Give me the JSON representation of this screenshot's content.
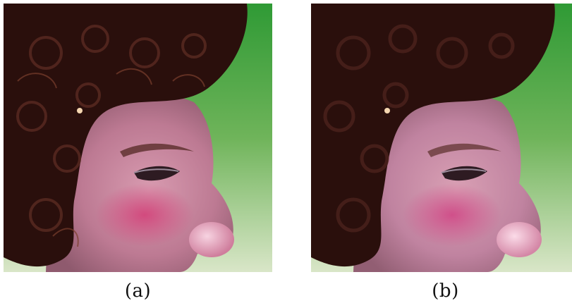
{
  "figure": {
    "panels": [
      {
        "id": "a",
        "caption": "(a)"
      },
      {
        "id": "b",
        "caption": "(b)"
      }
    ]
  },
  "colors": {
    "background_green": "#2f8f2f",
    "skin": "#c78a9c",
    "cheek": "#c84a78",
    "hair": "#2a0f0c",
    "nose_highlight": "#f2c6d8"
  }
}
